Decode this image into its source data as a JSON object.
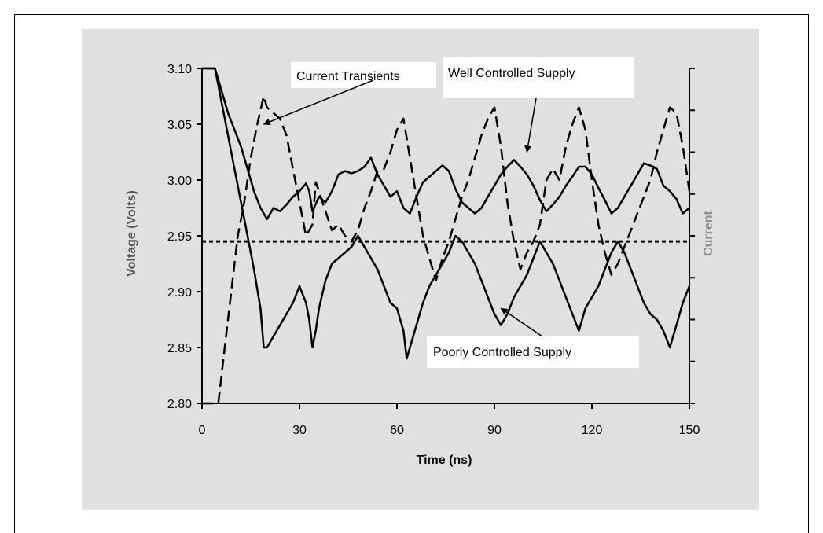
{
  "chart_data": {
    "type": "line",
    "xlabel": "Time (ns)",
    "ylabel": "Voltage (Volts)",
    "y2label": "Current",
    "xlim": [
      0,
      150
    ],
    "ylim": [
      2.8,
      3.1
    ],
    "x_ticks": [
      "0",
      "30",
      "60",
      "90",
      "120",
      "150"
    ],
    "y_ticks": [
      "2.80",
      "2.85",
      "2.90",
      "2.95",
      "3.00",
      "3.05",
      "3.10"
    ],
    "grid": false,
    "series": [
      {
        "name": "Well Controlled Supply",
        "style": "solid",
        "x": [
          0,
          4,
          6,
          8,
          10,
          12,
          14,
          16,
          18,
          20,
          22,
          24,
          26,
          28,
          30,
          32,
          33,
          34,
          36,
          38,
          40,
          42,
          44,
          46,
          48,
          50,
          52,
          54,
          56,
          58,
          60,
          62,
          64,
          66,
          68,
          70,
          72,
          74,
          76,
          78,
          80,
          82,
          84,
          86,
          88,
          90,
          92,
          94,
          96,
          98,
          100,
          102,
          104,
          106,
          108,
          110,
          112,
          114,
          116,
          118,
          120,
          122,
          124,
          126,
          128,
          130,
          132,
          134,
          136,
          138,
          140,
          142,
          144,
          146,
          148,
          150
        ],
        "values": [
          3.1,
          3.1,
          3.08,
          3.06,
          3.045,
          3.03,
          3.01,
          2.99,
          2.975,
          2.965,
          2.975,
          2.972,
          2.978,
          2.985,
          2.99,
          2.997,
          2.99,
          2.972,
          2.985,
          2.98,
          2.99,
          3.005,
          3.008,
          3.006,
          3.008,
          3.012,
          3.02,
          3.005,
          2.995,
          2.985,
          2.99,
          2.975,
          2.97,
          2.985,
          2.998,
          3.003,
          3.008,
          3.013,
          3.008,
          2.992,
          2.98,
          2.975,
          2.97,
          2.975,
          2.985,
          2.995,
          3.005,
          3.012,
          3.018,
          3.012,
          3.005,
          2.995,
          2.982,
          2.972,
          2.978,
          2.985,
          2.995,
          3.003,
          3.012,
          3.012,
          3.005,
          2.993,
          2.982,
          2.97,
          2.975,
          2.985,
          2.995,
          3.005,
          3.015,
          3.013,
          3.01,
          2.995,
          2.99,
          2.983,
          2.97,
          2.975
        ]
      },
      {
        "name": "Poorly Controlled Supply",
        "style": "solid",
        "x": [
          0,
          4,
          6,
          8,
          10,
          12,
          14,
          16,
          18,
          19,
          20,
          22,
          24,
          26,
          28,
          30,
          32,
          33,
          34,
          35,
          36,
          38,
          40,
          42,
          44,
          46,
          48,
          50,
          52,
          54,
          56,
          58,
          60,
          62,
          63,
          64,
          66,
          68,
          70,
          72,
          74,
          76,
          78,
          80,
          82,
          84,
          86,
          88,
          90,
          92,
          94,
          96,
          98,
          100,
          102,
          104,
          106,
          108,
          110,
          112,
          114,
          116,
          118,
          120,
          122,
          124,
          126,
          128,
          130,
          132,
          134,
          136,
          138,
          140,
          142,
          144,
          146,
          148,
          150
        ],
        "values": [
          3.1,
          3.1,
          3.07,
          3.04,
          3.01,
          2.98,
          2.95,
          2.92,
          2.885,
          2.85,
          2.85,
          2.86,
          2.87,
          2.88,
          2.89,
          2.905,
          2.89,
          2.875,
          2.85,
          2.865,
          2.885,
          2.91,
          2.925,
          2.93,
          2.935,
          2.94,
          2.95,
          2.94,
          2.93,
          2.92,
          2.905,
          2.89,
          2.885,
          2.865,
          2.84,
          2.85,
          2.87,
          2.89,
          2.905,
          2.915,
          2.925,
          2.935,
          2.95,
          2.945,
          2.935,
          2.925,
          2.91,
          2.895,
          2.88,
          2.87,
          2.88,
          2.895,
          2.905,
          2.915,
          2.93,
          2.945,
          2.935,
          2.925,
          2.91,
          2.895,
          2.88,
          2.865,
          2.885,
          2.895,
          2.905,
          2.92,
          2.935,
          2.945,
          2.935,
          2.92,
          2.905,
          2.89,
          2.88,
          2.875,
          2.865,
          2.85,
          2.87,
          2.89,
          2.905
        ]
      },
      {
        "name": "Current Transients",
        "style": "dashed",
        "x": [
          0,
          5,
          7,
          9,
          11,
          13,
          15,
          17,
          19,
          20,
          22,
          24,
          26,
          28,
          30,
          32,
          34,
          35,
          36,
          38,
          40,
          42,
          44,
          46,
          48,
          50,
          52,
          54,
          56,
          58,
          60,
          62,
          64,
          66,
          68,
          70,
          72,
          74,
          76,
          78,
          80,
          82,
          84,
          86,
          88,
          90,
          92,
          94,
          96,
          98,
          100,
          102,
          104,
          106,
          108,
          110,
          112,
          114,
          116,
          118,
          120,
          122,
          124,
          126,
          128,
          130,
          132,
          134,
          136,
          138,
          140,
          142,
          144,
          146,
          148,
          150
        ],
        "values": [
          2.8,
          2.8,
          2.85,
          2.9,
          2.95,
          2.98,
          3.02,
          3.05,
          3.075,
          3.065,
          3.06,
          3.055,
          3.04,
          3.01,
          2.98,
          2.95,
          2.96,
          2.998,
          2.99,
          2.972,
          2.955,
          2.96,
          2.95,
          2.945,
          2.955,
          2.975,
          2.99,
          3.008,
          3.01,
          3.025,
          3.045,
          3.055,
          3.02,
          2.985,
          2.95,
          2.93,
          2.91,
          2.93,
          2.945,
          2.965,
          2.985,
          3.0,
          3.02,
          3.04,
          3.055,
          3.065,
          3.03,
          2.98,
          2.945,
          2.92,
          2.935,
          2.945,
          2.96,
          3.0,
          3.01,
          3.0,
          3.03,
          3.05,
          3.065,
          3.045,
          3.0,
          2.96,
          2.935,
          2.915,
          2.925,
          2.94,
          2.955,
          2.97,
          2.985,
          3.0,
          3.025,
          3.045,
          3.065,
          3.06,
          3.03,
          2.99
        ]
      },
      {
        "name": "",
        "style": "dotted",
        "x": [
          0,
          150
        ],
        "values": [
          2.945,
          2.945
        ]
      }
    ],
    "annotations": [
      {
        "text": "Current Transients",
        "target_x": 19,
        "target_y": 3.05
      },
      {
        "text": "Well Controlled Supply",
        "target_x": 100,
        "target_y": 3.025
      },
      {
        "text": "Poorly Controlled Supply",
        "target_x": 92,
        "target_y": 2.885
      }
    ]
  }
}
